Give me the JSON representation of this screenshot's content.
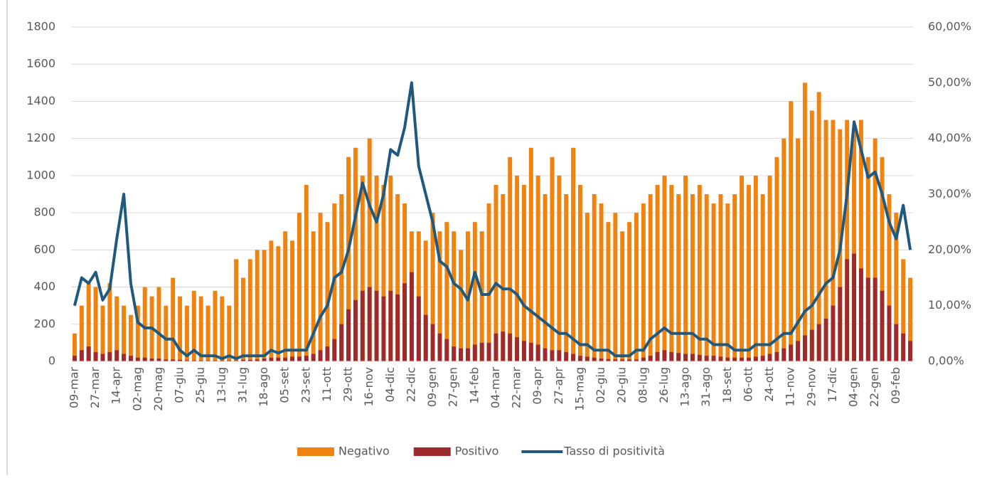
{
  "chart_data": {
    "type": "bar-line",
    "categories": [
      "09-mar",
      null,
      null,
      "27-mar",
      null,
      null,
      "14-apr",
      null,
      null,
      "02-mag",
      null,
      null,
      "20-mag",
      null,
      null,
      "07-giu",
      null,
      null,
      "25-giu",
      null,
      null,
      "13-lug",
      null,
      null,
      "31-lug",
      null,
      null,
      "18-ago",
      null,
      null,
      "05-set",
      null,
      null,
      "23-set",
      null,
      null,
      "11-ott",
      null,
      null,
      "29-ott",
      null,
      null,
      "16-nov",
      null,
      null,
      "04-dic",
      null,
      null,
      "22-dic",
      null,
      null,
      "09-gen",
      null,
      null,
      "27-gen",
      null,
      null,
      "14-feb",
      null,
      null,
      "04-mar",
      null,
      null,
      "22-mar",
      null,
      null,
      "09-apr",
      null,
      null,
      "27-apr",
      null,
      null,
      "15-mag",
      null,
      null,
      "02-giu",
      null,
      null,
      "20-giu",
      null,
      null,
      "08-lug",
      null,
      null,
      "26-lug",
      null,
      null,
      "13-ago",
      null,
      null,
      "31-ago",
      null,
      null,
      "18-set",
      null,
      null,
      "06-ott",
      null,
      null,
      "24-ott",
      null,
      null,
      "11-nov",
      null,
      null,
      "29-nov",
      null,
      null,
      "17-dic",
      null,
      null,
      "04-gen",
      null,
      null,
      "22-gen",
      null,
      null,
      "09-feb",
      null,
      null
    ],
    "series": [
      {
        "name": "Negativo",
        "color": "#f0820f",
        "kind": "bar",
        "values": [
          150,
          300,
          420,
          400,
          300,
          420,
          350,
          300,
          250,
          300,
          400,
          350,
          400,
          300,
          450,
          350,
          300,
          380,
          350,
          300,
          380,
          350,
          300,
          550,
          450,
          550,
          600,
          600,
          650,
          620,
          700,
          650,
          800,
          950,
          700,
          800,
          750,
          850,
          900,
          1100,
          1150,
          1000,
          1200,
          1000,
          950,
          1000,
          900,
          850,
          700,
          700,
          650,
          800,
          700,
          750,
          700,
          600,
          700,
          750,
          700,
          850,
          950,
          900,
          1100,
          1000,
          950,
          1150,
          1000,
          900,
          1100,
          1000,
          900,
          1150,
          950,
          800,
          900,
          850,
          750,
          800,
          700,
          750,
          800,
          850,
          900,
          950,
          1000,
          950,
          900,
          1000,
          900,
          950,
          900,
          850,
          900,
          850,
          900,
          1000,
          950,
          1000,
          900,
          1000,
          1100,
          1200,
          1400,
          1200,
          1500,
          1350,
          1450,
          1300,
          1300,
          1250,
          1300,
          1250,
          1300,
          1100,
          1200,
          1100,
          900,
          800,
          550,
          450
        ]
      },
      {
        "name": "Positivo",
        "color": "#9e2a2b",
        "kind": "bar",
        "values": [
          30,
          60,
          80,
          50,
          40,
          50,
          60,
          40,
          30,
          20,
          20,
          15,
          15,
          10,
          10,
          8,
          6,
          5,
          5,
          5,
          5,
          5,
          5,
          5,
          8,
          8,
          10,
          15,
          20,
          20,
          20,
          25,
          25,
          30,
          40,
          60,
          80,
          120,
          200,
          280,
          330,
          380,
          400,
          380,
          350,
          380,
          360,
          420,
          480,
          350,
          250,
          200,
          150,
          120,
          80,
          70,
          70,
          90,
          100,
          100,
          150,
          160,
          150,
          130,
          110,
          100,
          90,
          70,
          60,
          60,
          50,
          40,
          30,
          25,
          20,
          15,
          12,
          10,
          10,
          10,
          10,
          20,
          30,
          50,
          60,
          50,
          45,
          40,
          40,
          35,
          30,
          30,
          25,
          20,
          20,
          20,
          20,
          25,
          30,
          40,
          50,
          70,
          90,
          110,
          140,
          170,
          200,
          230,
          300,
          400,
          550,
          580,
          500,
          450,
          450,
          380,
          300,
          200,
          150,
          110
        ]
      },
      {
        "name": "Tasso di positività",
        "color": "#1f5a7e",
        "kind": "line",
        "axis": "y2",
        "values": [
          10,
          15,
          14,
          16,
          11,
          13,
          22,
          30,
          14,
          7,
          6,
          6,
          5,
          4,
          4,
          2,
          1,
          2,
          1,
          1,
          1,
          0.5,
          1,
          0.5,
          1,
          1,
          1,
          1,
          2,
          1.5,
          2,
          2,
          2,
          2,
          5,
          8,
          10,
          15,
          16,
          20,
          26,
          32,
          28,
          25,
          30,
          38,
          37,
          42,
          50,
          35,
          30,
          25,
          18,
          17,
          14,
          13,
          11,
          16,
          12,
          12,
          14,
          13,
          13,
          12,
          10,
          9,
          8,
          7,
          6,
          5,
          5,
          4,
          3,
          3,
          2,
          2,
          2,
          1,
          1,
          1,
          2,
          2,
          4,
          5,
          6,
          5,
          5,
          5,
          5,
          4,
          4,
          3,
          3,
          3,
          2,
          2,
          2,
          3,
          3,
          3,
          4,
          5,
          5,
          7,
          9,
          10,
          12,
          14,
          15,
          20,
          30,
          43,
          38,
          33,
          34,
          30,
          25,
          22,
          28,
          20
        ]
      }
    ],
    "ylim": [
      0,
      1800
    ],
    "yticks": [
      0,
      200,
      400,
      600,
      800,
      1000,
      1200,
      1400,
      1600,
      1800
    ],
    "y2lim": [
      0,
      60
    ],
    "y2ticks": [
      {
        "value": 0,
        "label": "0,00%"
      },
      {
        "value": 10,
        "label": "10,00%"
      },
      {
        "value": 20,
        "label": "20,00%"
      },
      {
        "value": 30,
        "label": "30,00%"
      },
      {
        "value": 40,
        "label": "40,00%"
      },
      {
        "value": 50,
        "label": "50,00%"
      },
      {
        "value": 60,
        "label": "60,00%"
      }
    ],
    "grid": true,
    "legend": "bottom"
  }
}
